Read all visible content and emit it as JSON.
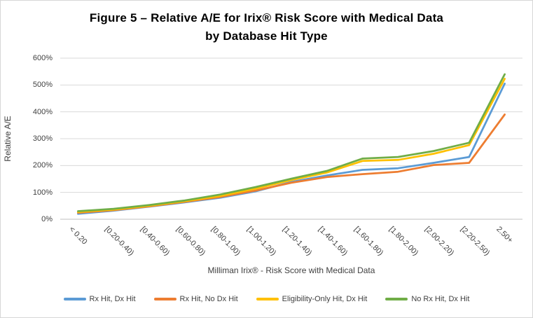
{
  "title": {
    "line1": "Figure 5 – Relative A/E for Irix® Risk Score with Medical Data",
    "line2": "by Database Hit Type"
  },
  "chart_data": {
    "type": "line",
    "title": "Figure 5 – Relative A/E for Irix® Risk Score with Medical Data by Database Hit Type",
    "xlabel": "Milliman Irix® - Risk Score with Medical Data",
    "ylabel": "Relative A/E",
    "ylim": [
      0,
      600
    ],
    "ytick_step": 100,
    "ytick_labels": [
      "0%",
      "100%",
      "200%",
      "300%",
      "400%",
      "500%",
      "600%"
    ],
    "grid": true,
    "legend_position": "bottom",
    "categories": [
      "< 0.20",
      "[0.20-0.40)",
      "[0.40-0.60)",
      "[0.60-0.80)",
      "[0.80-1.00)",
      "[1.00-1.20)",
      "[1.20-1.40)",
      "[1.40-1.60)",
      "[1.60-1.80)",
      "[1.80-2.00)",
      "[2.00-2.20)",
      "[2.20-2.50)",
      "2.50+"
    ],
    "series": [
      {
        "name": "Rx Hit, Dx Hit",
        "color": "#5B9BD5",
        "values": [
          20,
          32,
          47,
          63,
          80,
          104,
          139,
          163,
          184,
          190,
          210,
          232,
          505
        ]
      },
      {
        "name": "Rx Hit, No Dx Hit",
        "color": "#ED7D31",
        "values": [
          24,
          34,
          48,
          65,
          83,
          107,
          136,
          157,
          168,
          177,
          202,
          210,
          390
        ]
      },
      {
        "name": "Eligibility-Only Hit, Dx Hit",
        "color": "#FFC000",
        "values": [
          27,
          36,
          50,
          67,
          87,
          114,
          146,
          174,
          217,
          221,
          244,
          276,
          523
        ]
      },
      {
        "name": "No Rx Hit, Dx Hit",
        "color": "#70AD47",
        "values": [
          30,
          39,
          53,
          70,
          92,
          120,
          151,
          180,
          226,
          232,
          254,
          285,
          540
        ]
      }
    ],
    "colors": {
      "grid": "#D9D9D9",
      "axis_line": "#BFBFBF"
    }
  }
}
